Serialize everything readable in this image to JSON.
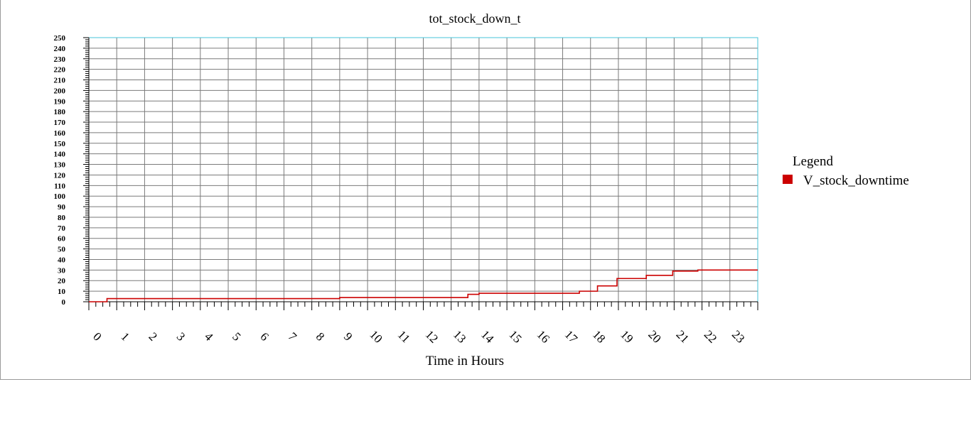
{
  "chart_data": {
    "type": "line",
    "title": "tot_stock_down_t",
    "xlabel": "Time in Hours",
    "ylabel": "",
    "xlim": [
      0,
      24
    ],
    "ylim": [
      0,
      250
    ],
    "y_major_step": 10,
    "y_minor_step": 2,
    "x_major_step": 1,
    "x_minor_step": 0.25,
    "x_tick_labels": [
      "0",
      "1",
      "2",
      "3",
      "4",
      "5",
      "6",
      "7",
      "8",
      "9",
      "10",
      "11",
      "12",
      "13",
      "14",
      "15",
      "16",
      "17",
      "18",
      "19",
      "20",
      "21",
      "22",
      "23"
    ],
    "y_tick_labels": [
      "0",
      "10",
      "20",
      "30",
      "40",
      "50",
      "60",
      "70",
      "80",
      "90",
      "100",
      "110",
      "120",
      "130",
      "140",
      "150",
      "160",
      "170",
      "180",
      "190",
      "200",
      "210",
      "220",
      "230",
      "240",
      "250"
    ],
    "grid": true,
    "legend": {
      "title": "Legend",
      "position": "right"
    },
    "colors": {
      "plot_border": "#45c3d8",
      "grid": "#7a7a7a",
      "series": "#cc0000"
    },
    "series": [
      {
        "name": "V_stock_downtime",
        "color": "#cc0000",
        "step": true,
        "points": [
          [
            0,
            0
          ],
          [
            0.65,
            0
          ],
          [
            0.65,
            3
          ],
          [
            9.0,
            3
          ],
          [
            9.0,
            4
          ],
          [
            13.6,
            4
          ],
          [
            13.6,
            7
          ],
          [
            14.0,
            7
          ],
          [
            14.0,
            8
          ],
          [
            17.6,
            8
          ],
          [
            17.6,
            10
          ],
          [
            18.25,
            10
          ],
          [
            18.25,
            15
          ],
          [
            18.95,
            15
          ],
          [
            18.95,
            22
          ],
          [
            20.0,
            22
          ],
          [
            20.0,
            25
          ],
          [
            20.95,
            25
          ],
          [
            20.95,
            29
          ],
          [
            21.85,
            29
          ],
          [
            21.85,
            30
          ],
          [
            24,
            30
          ]
        ]
      }
    ]
  }
}
